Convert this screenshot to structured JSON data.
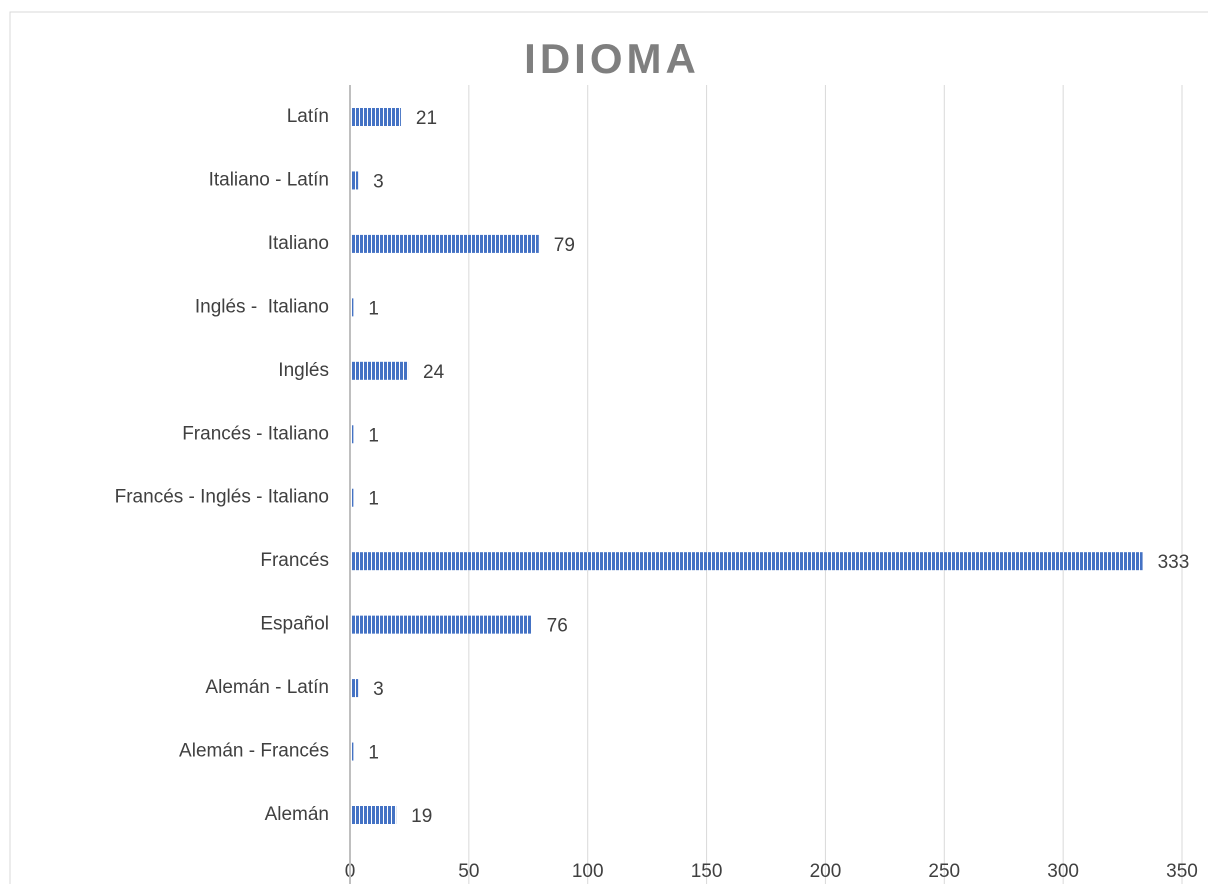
{
  "chart_data": {
    "type": "bar",
    "orientation": "horizontal",
    "title": "IDIOMA",
    "categories": [
      "Latín",
      "Italiano - Latín",
      "Italiano",
      "Inglés -  Italiano",
      "Inglés",
      "Francés - Italiano",
      "Francés - Inglés - Italiano",
      "Francés",
      "Español",
      "Alemán - Latín",
      "Alemán - Francés",
      "Alemán"
    ],
    "values": [
      21,
      3,
      79,
      1,
      24,
      1,
      1,
      333,
      76,
      3,
      1,
      19
    ],
    "color": "#4472c4",
    "xlim": [
      0,
      350
    ],
    "xticks": [
      0,
      50,
      100,
      150,
      200,
      250,
      300,
      350
    ],
    "grid": true
  }
}
